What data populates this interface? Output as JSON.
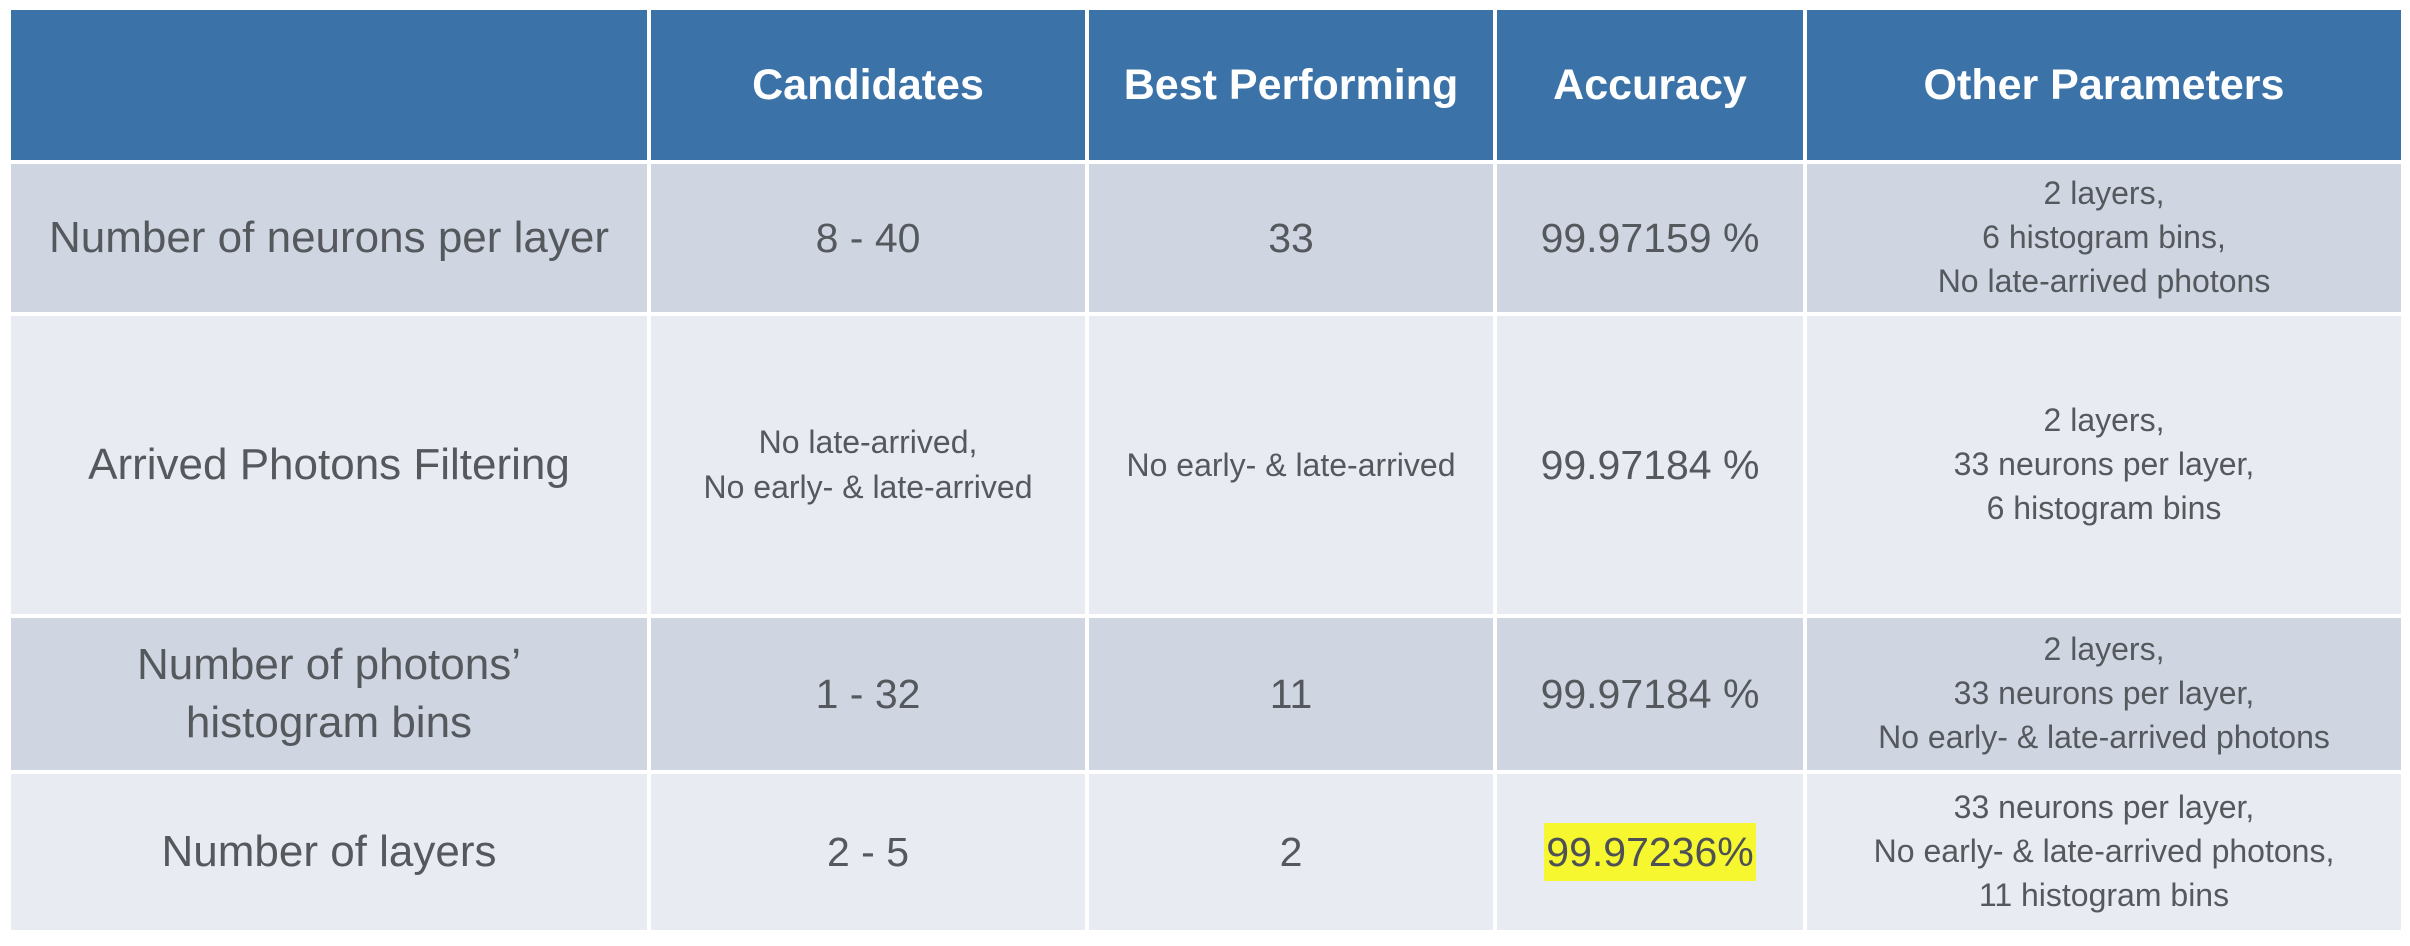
{
  "headers": [
    "",
    "Candidates",
    "Best Performing",
    "Accuracy",
    "Other Parameters"
  ],
  "rows": [
    {
      "parameter": "Number of neurons per layer",
      "candidates": [
        "8 - 40"
      ],
      "best": [
        "33"
      ],
      "accuracy": "99.97159 %",
      "other": [
        "2 layers,",
        "6 histogram bins,",
        "No late-arrived photons"
      ]
    },
    {
      "parameter": "Arrived Photons Filtering",
      "candidates": [
        "No late-arrived,",
        "No early- & late-arrived"
      ],
      "best": [
        "No early- & late-arrived"
      ],
      "accuracy": "99.97184 %",
      "other": [
        "2 layers,",
        "33 neurons per layer,",
        "6 histogram bins"
      ]
    },
    {
      "parameter_lines": [
        "Number of photons’",
        "histogram bins"
      ],
      "candidates": [
        "1 - 32"
      ],
      "best": [
        "11"
      ],
      "accuracy": "99.97184 %",
      "other": [
        "2 layers,",
        "33 neurons per layer,",
        "No early- & late-arrived photons"
      ]
    },
    {
      "parameter": "Number of layers",
      "candidates": [
        "2 - 5"
      ],
      "best": [
        "2"
      ],
      "accuracy": "99.97236%",
      "accuracy_highlight_color": "#f6f72e",
      "other": [
        "33 neurons per layer,",
        "No early- & late-arrived photons,",
        "11 histogram bins"
      ]
    }
  ],
  "colors": {
    "header_bg": "#3b73a8",
    "row_dark_bg": "#cfd6e2",
    "row_light_bg": "#e8ebf1",
    "text": "#55595e"
  }
}
